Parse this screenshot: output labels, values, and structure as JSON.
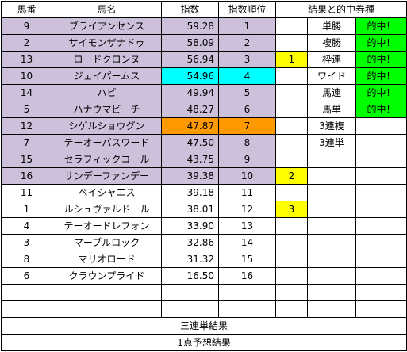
{
  "headers": {
    "horse_no": "馬番",
    "horse_name": "馬名",
    "index": "指数",
    "index_rank": "指数順位",
    "result_title": "結果と的中券種"
  },
  "rows": [
    {
      "no": "9",
      "name": "ブライアンセンス",
      "index": "59.28",
      "rank": "1",
      "mark": "",
      "ticket": "単勝",
      "hit": "的中！"
    },
    {
      "no": "2",
      "name": "サイモンザナドゥ",
      "index": "58.09",
      "rank": "2",
      "mark": "",
      "ticket": "複勝",
      "hit": "的中！"
    },
    {
      "no": "13",
      "name": "ロードクロンヌ",
      "index": "56.94",
      "rank": "3",
      "mark": "1",
      "ticket": "枠連",
      "hit": "的中！"
    },
    {
      "no": "10",
      "name": "ジェイパームス",
      "index": "54.96",
      "rank": "4",
      "mark": "",
      "ticket": "ワイド",
      "hit": "的中！"
    },
    {
      "no": "14",
      "name": "ハピ",
      "index": "49.94",
      "rank": "5",
      "mark": "",
      "ticket": "馬連",
      "hit": "的中！"
    },
    {
      "no": "5",
      "name": "ハナウマビーチ",
      "index": "48.27",
      "rank": "6",
      "mark": "",
      "ticket": "馬単",
      "hit": "的中！"
    },
    {
      "no": "12",
      "name": "シゲルショウグン",
      "index": "47.87",
      "rank": "7",
      "mark": "",
      "ticket": "3連複",
      "hit": ""
    },
    {
      "no": "7",
      "name": "テーオーパスワード",
      "index": "47.50",
      "rank": "8",
      "mark": "",
      "ticket": "3連単",
      "hit": ""
    },
    {
      "no": "15",
      "name": "セラフィックコール",
      "index": "43.75",
      "rank": "9",
      "mark": "",
      "ticket": "",
      "hit": ""
    },
    {
      "no": "16",
      "name": "サンデーファンデー",
      "index": "39.38",
      "rank": "10",
      "mark": "2",
      "ticket": "",
      "hit": ""
    },
    {
      "no": "11",
      "name": "ペイシャエス",
      "index": "39.18",
      "rank": "11",
      "mark": "",
      "ticket": "",
      "hit": ""
    },
    {
      "no": "1",
      "name": "ルシュヴァルドール",
      "index": "38.01",
      "rank": "12",
      "mark": "3",
      "ticket": "",
      "hit": ""
    },
    {
      "no": "4",
      "name": "テーオードレフォン",
      "index": "33.90",
      "rank": "13",
      "mark": "",
      "ticket": "",
      "hit": ""
    },
    {
      "no": "3",
      "name": "マーブルロック",
      "index": "32.86",
      "rank": "14",
      "mark": "",
      "ticket": "",
      "hit": ""
    },
    {
      "no": "8",
      "name": "マリオロード",
      "index": "31.32",
      "rank": "15",
      "mark": "",
      "ticket": "",
      "hit": ""
    },
    {
      "no": "6",
      "name": "クラウンプライド",
      "index": "16.50",
      "rank": "16",
      "mark": "",
      "ticket": "",
      "hit": ""
    }
  ],
  "footer": {
    "trifecta_result": "三連単結果",
    "one_point_prediction": "1点予想結果"
  },
  "colors": {
    "highlight_purple": "#ccc0da",
    "highlight_cyan": "#00ffff",
    "highlight_orange": "#ff9900",
    "mark_yellow": "#ffff00",
    "hit_green": "#00ff00"
  }
}
